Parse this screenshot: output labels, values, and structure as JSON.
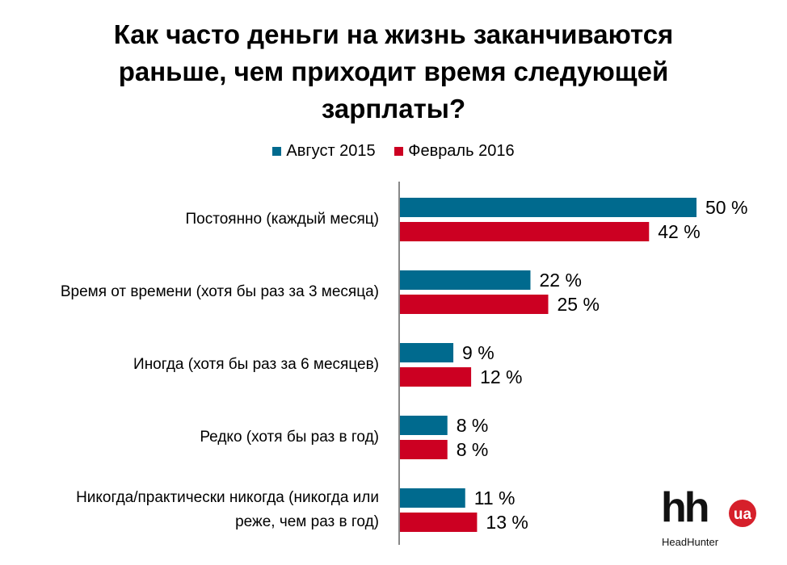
{
  "chart_data": {
    "type": "bar",
    "orientation": "horizontal",
    "title": "Как часто деньги на жизнь заканчиваются раньше, чем приходит время следующей зарплаты?",
    "title_lines": [
      "Как часто деньги на жизнь заканчиваются",
      "раньше, чем приходит время следующей",
      "зарплаты?"
    ],
    "categories": [
      "Постоянно (каждый месяц)",
      "Время от времени (хотя бы раз за 3 месяца)",
      "Иногда (хотя бы раз за 6 месяцев)",
      "Редко (хотя бы раз в год)",
      "Никогда/практически никогда (никогда или реже, чем раз в год)"
    ],
    "category_lines": [
      [
        "Постоянно (каждый месяц)"
      ],
      [
        "Время от времени (хотя бы раз за 3 месяца)"
      ],
      [
        "Иногда (хотя бы раз за 6 месяцев)"
      ],
      [
        "Редко (хотя бы раз в год)"
      ],
      [
        "Никогда/практически никогда (никогда или",
        "реже, чем раз в год)"
      ]
    ],
    "series": [
      {
        "name": "Август 2015",
        "color": "#006a8e",
        "values": [
          50,
          22,
          9,
          8,
          11
        ]
      },
      {
        "name": "Февраль 2016",
        "color": "#cc0022",
        "values": [
          42,
          25,
          12,
          8,
          13
        ]
      }
    ],
    "value_suffix": " %",
    "xlim": [
      0,
      50
    ],
    "legend_position": "top",
    "grid": false
  },
  "logo": {
    "text": "hh",
    "badge": "ua",
    "subtitle": "HeadHunter"
  }
}
